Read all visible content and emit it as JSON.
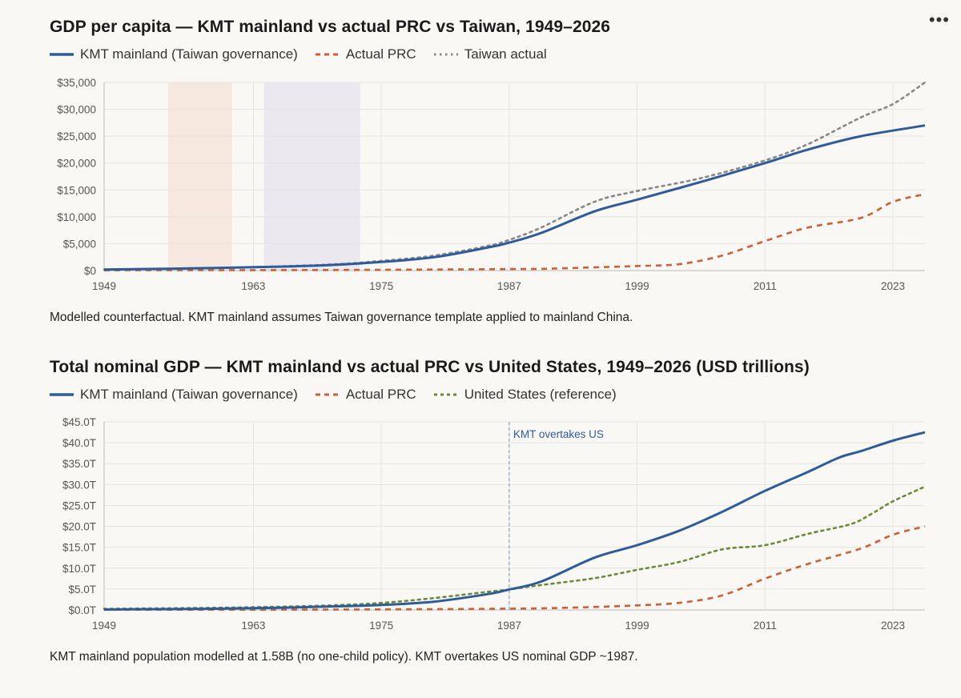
{
  "menu": {
    "icon": "more-dots-icon",
    "label": "•••"
  },
  "colors": {
    "kmt": "#2e5b9a",
    "prc": "#c8603a",
    "taiwan": "#888888",
    "us": "#6a8a3a",
    "grid": "#e6e4df",
    "band1": "#f6e7df",
    "band2": "#ebe9ef"
  },
  "chart_data": [
    {
      "type": "line",
      "title": "GDP per capita — KMT mainland vs actual PRC vs Taiwan, 1949–2026",
      "caption": "Modelled counterfactual. KMT mainland assumes Taiwan governance template applied to mainland China.",
      "xlim": [
        1949,
        2026
      ],
      "ylim": [
        0,
        35000
      ],
      "x_ticks": [
        1949,
        1963,
        1975,
        1987,
        1999,
        2011,
        2023
      ],
      "x_tick_labels": [
        "1949",
        "1963",
        "1975",
        "1987",
        "1999",
        "2011",
        "2023"
      ],
      "y_ticks": [
        0,
        5000,
        10000,
        15000,
        20000,
        25000,
        30000,
        35000
      ],
      "y_tick_labels": [
        "$0",
        "$5,000",
        "$10,000",
        "$15,000",
        "$20,000",
        "$25,000",
        "$30,000",
        "$35,000"
      ],
      "bands": [
        {
          "from": 1955,
          "to": 1961,
          "color": "#f6e7df"
        },
        {
          "from": 1964,
          "to": 1973,
          "color": "#ebe9ef"
        }
      ],
      "series": [
        {
          "name": "KMT mainland (Taiwan governance)",
          "color": "#2e5b9a",
          "dash": "solid",
          "x": [
            1949,
            1955,
            1960,
            1965,
            1970,
            1975,
            1980,
            1985,
            1987,
            1990,
            1995,
            1999,
            2005,
            2011,
            2015,
            2020,
            2026
          ],
          "y": [
            200,
            350,
            500,
            700,
            1000,
            1600,
            2500,
            4300,
            5200,
            7000,
            11000,
            13200,
            16500,
            20000,
            22500,
            25000,
            27000
          ]
        },
        {
          "name": "Actual PRC",
          "color": "#c8603a",
          "dash": "dashed",
          "x": [
            1949,
            1960,
            1970,
            1980,
            1987,
            1990,
            1995,
            1999,
            2003,
            2007,
            2011,
            2015,
            2020,
            2023,
            2026
          ],
          "y": [
            50,
            80,
            110,
            190,
            280,
            320,
            600,
            850,
            1200,
            2800,
            5500,
            8000,
            9800,
            12800,
            14200
          ]
        },
        {
          "name": "Taiwan actual",
          "color": "#888888",
          "dash": "dotted",
          "x": [
            1949,
            1960,
            1970,
            1975,
            1980,
            1985,
            1987,
            1990,
            1995,
            1999,
            2005,
            2011,
            2015,
            2020,
            2023,
            2026
          ],
          "y": [
            200,
            500,
            1100,
            1800,
            2800,
            4600,
            5700,
            8000,
            12800,
            14800,
            17200,
            20500,
            23500,
            28500,
            31000,
            35000
          ]
        }
      ]
    },
    {
      "type": "line",
      "title": "Total nominal GDP — KMT mainland vs actual PRC vs United States, 1949–2026 (USD trillions)",
      "caption": "KMT mainland population modelled at 1.58B (no one-child policy). KMT overtakes US nominal GDP ~1987.",
      "xlim": [
        1949,
        2026
      ],
      "ylim": [
        0,
        45
      ],
      "x_ticks": [
        1949,
        1963,
        1975,
        1987,
        1999,
        2011,
        2023
      ],
      "x_tick_labels": [
        "1949",
        "1963",
        "1975",
        "1987",
        "1999",
        "2011",
        "2023"
      ],
      "y_ticks": [
        0,
        5,
        10,
        15,
        20,
        25,
        30,
        35,
        40,
        45
      ],
      "y_tick_labels": [
        "$0.0T",
        "$5.0T",
        "$10.0T",
        "$15.0T",
        "$20.0T",
        "$25.0T",
        "$30.0T",
        "$35.0T",
        "$40.0T",
        "$45.0T"
      ],
      "annotation": {
        "x": 1987,
        "label": "KMT overtakes US"
      },
      "series": [
        {
          "name": "KMT mainland (Taiwan governance)",
          "color": "#2e5b9a",
          "dash": "solid",
          "x": [
            1949,
            1955,
            1960,
            1965,
            1970,
            1975,
            1980,
            1985,
            1987,
            1990,
            1995,
            1999,
            2003,
            2007,
            2011,
            2015,
            2018,
            2020,
            2023,
            2026
          ],
          "y": [
            0.1,
            0.2,
            0.3,
            0.5,
            0.8,
            1.2,
            2.0,
            3.8,
            4.9,
            6.8,
            12.5,
            15.5,
            19.0,
            23.5,
            28.5,
            33.0,
            36.5,
            38.0,
            40.5,
            42.5
          ]
        },
        {
          "name": "Actual PRC",
          "color": "#c8603a",
          "dash": "dashed",
          "x": [
            1949,
            1960,
            1970,
            1980,
            1987,
            1990,
            1995,
            1999,
            2003,
            2007,
            2011,
            2015,
            2020,
            2023,
            2026
          ],
          "y": [
            0.05,
            0.06,
            0.09,
            0.19,
            0.3,
            0.4,
            0.7,
            1.1,
            1.7,
            3.5,
            7.5,
            11.0,
            14.7,
            18.0,
            20.0
          ]
        },
        {
          "name": "United States (reference)",
          "color": "#6a8a3a",
          "dash": "dotted",
          "x": [
            1949,
            1955,
            1960,
            1965,
            1970,
            1975,
            1980,
            1985,
            1987,
            1990,
            1995,
            1999,
            2003,
            2007,
            2011,
            2015,
            2019,
            2021,
            2023,
            2026
          ],
          "y": [
            0.27,
            0.4,
            0.54,
            0.74,
            1.07,
            1.68,
            2.86,
            4.34,
            4.9,
            5.96,
            7.6,
            9.6,
            11.5,
            14.5,
            15.5,
            18.2,
            20.5,
            23.0,
            26.0,
            29.5
          ]
        }
      ]
    }
  ]
}
